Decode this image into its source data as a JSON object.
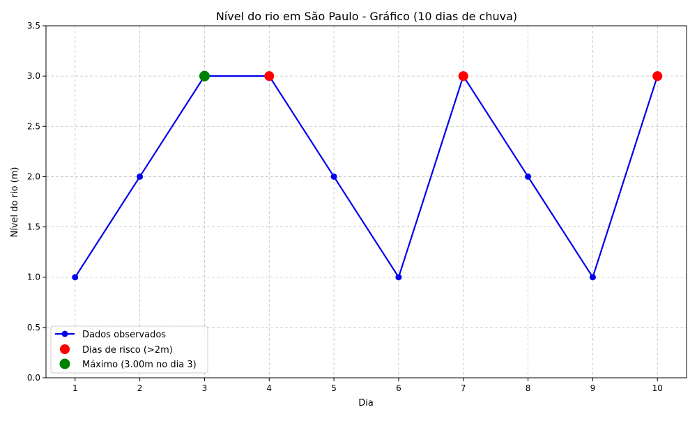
{
  "chart_data": {
    "type": "line",
    "title": "Nível do rio em São Paulo - Gráfico (10 dias de chuva)",
    "xlabel": "Dia",
    "ylabel": "Nível do rio (m)",
    "x": [
      1,
      2,
      3,
      4,
      5,
      6,
      7,
      8,
      9,
      10
    ],
    "xlim": [
      0.55,
      10.45
    ],
    "ylim": [
      0,
      3.5
    ],
    "xticks": [
      "1",
      "2",
      "3",
      "4",
      "5",
      "6",
      "7",
      "8",
      "9",
      "10"
    ],
    "yticks": [
      "0.0",
      "0.5",
      "1.0",
      "1.5",
      "2.0",
      "2.5",
      "3.0",
      "3.5"
    ],
    "grid": true,
    "legend_position": "lower-left",
    "series": [
      {
        "name": "Dados observados",
        "kind": "line",
        "color": "#0000ee",
        "x": [
          1,
          2,
          3,
          4,
          5,
          6,
          7,
          8,
          9,
          10
        ],
        "values": [
          1,
          2,
          3,
          3,
          2,
          1,
          3,
          2,
          1,
          3
        ]
      },
      {
        "name": "Dias de risco (>2m)",
        "kind": "scatter",
        "color": "#ff0000",
        "x": [
          3,
          4,
          7,
          10
        ],
        "values": [
          3,
          3,
          3,
          3
        ]
      },
      {
        "name": "Máximo (3.00m no dia 3)",
        "kind": "scatter",
        "color": "#008000",
        "x": [
          3
        ],
        "values": [
          3
        ]
      }
    ]
  }
}
